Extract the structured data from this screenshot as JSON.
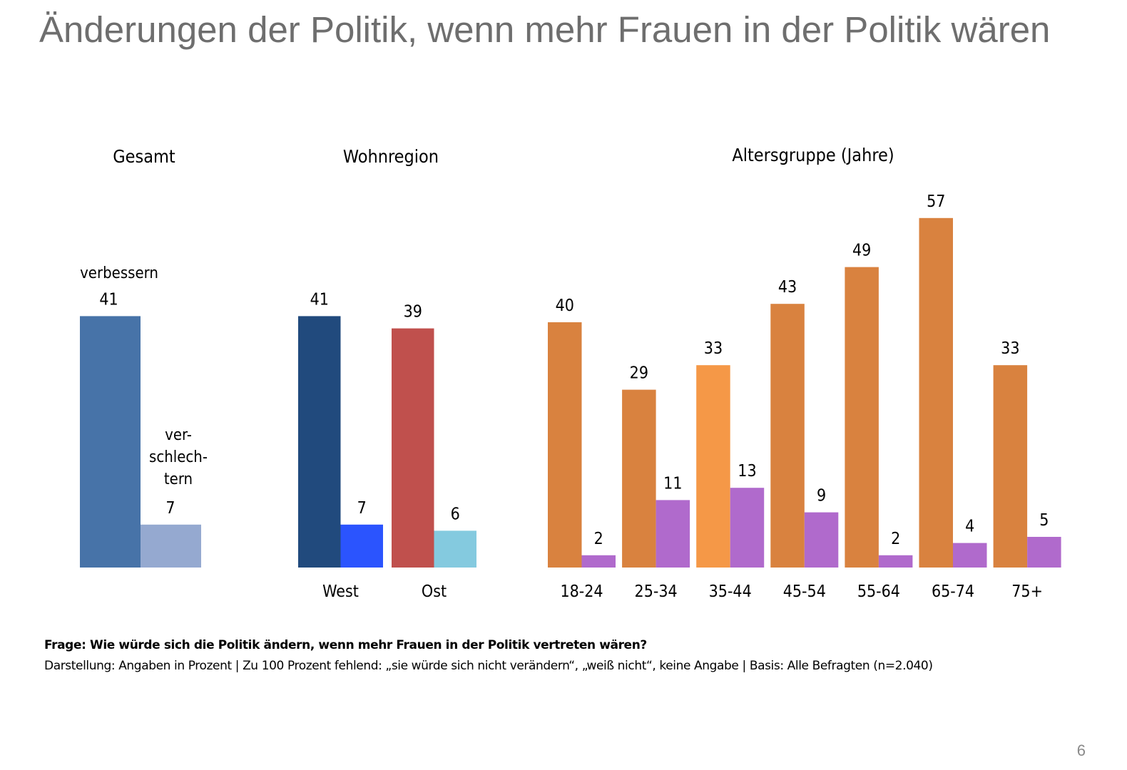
{
  "title": "Änderungen der Politik, wenn mehr Frauen in der Politik wären",
  "footnote": {
    "question": "Frage: Wie würde sich die Politik ändern, wenn mehr Frauen in der Politik vertreten wären?",
    "description": "Darstellung: Angaben in Prozent | Zu 100 Prozent fehlend: „sie würde sich nicht verändern“, „weiß nicht“, keine Angabe | Basis: Alle Befragten (n=2.040)"
  },
  "page_number": "6",
  "chart_data": [
    {
      "type": "bar",
      "title": "Gesamt",
      "categories": [
        ""
      ],
      "series": [
        {
          "name": "verbessern",
          "values": [
            41
          ],
          "color": "#4773a8"
        },
        {
          "name": "ver-schlech-tern",
          "values": [
            7
          ],
          "color": "#95a9d0"
        }
      ],
      "series_labels": {
        "improve": "verbessern",
        "worsen": [
          "ver-",
          "schlech-",
          "tern"
        ]
      },
      "ylim": [
        0,
        60
      ]
    },
    {
      "type": "bar",
      "title": "Wohnregion",
      "categories": [
        "West",
        "Ost"
      ],
      "series": [
        {
          "name": "verbessern",
          "values": [
            41,
            39
          ],
          "colors": [
            "#214a7d",
            "#c0504d"
          ]
        },
        {
          "name": "verschlechtern",
          "values": [
            7,
            6
          ],
          "colors": [
            "#2b54fe",
            "#84cadf"
          ]
        }
      ],
      "ylim": [
        0,
        60
      ]
    },
    {
      "type": "bar",
      "title": "Altersgruppe (Jahre)",
      "categories": [
        "18-24",
        "25-34",
        "35-44",
        "45-54",
        "55-64",
        "65-74",
        "75+"
      ],
      "series": [
        {
          "name": "verbessern",
          "values": [
            40,
            29,
            33,
            43,
            49,
            57,
            33
          ],
          "colors": [
            "#d9823f",
            "#d9823f",
            "#f59847",
            "#d9823f",
            "#d9823f",
            "#d9823f",
            "#d9823f"
          ]
        },
        {
          "name": "verschlechtern",
          "values": [
            2,
            11,
            13,
            9,
            2,
            4,
            5
          ],
          "colors": [
            "#b06acc",
            "#b06acc",
            "#b06acc",
            "#b06acc",
            "#b06acc",
            "#b06acc",
            "#b06acc"
          ]
        }
      ],
      "ylim": [
        0,
        60
      ]
    }
  ]
}
